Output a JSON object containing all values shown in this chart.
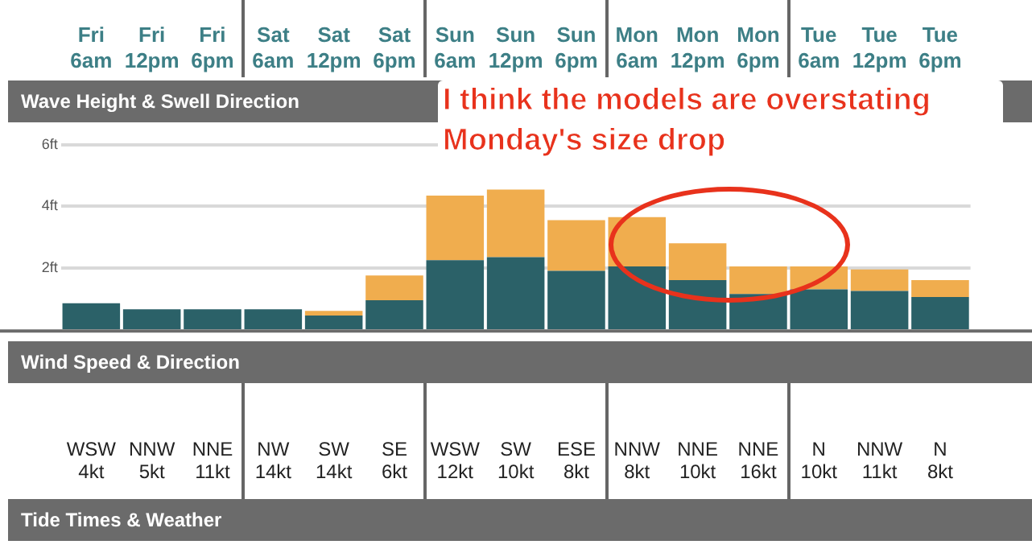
{
  "chart_data": [
    {
      "type": "bar",
      "title": "Wave Height & Swell Direction",
      "stacked": true,
      "categories": [
        "Fri 6am",
        "Fri 12pm",
        "Fri 6pm",
        "Sat 6am",
        "Sat 12pm",
        "Sat 6pm",
        "Sun 6am",
        "Sun 12pm",
        "Sun 6pm",
        "Mon 6am",
        "Mon 12pm",
        "Mon 6pm",
        "Tue 6am",
        "Tue 12pm",
        "Tue 6pm"
      ],
      "series": [
        {
          "color": "#2b6168",
          "values": [
            0.85,
            0.65,
            0.65,
            0.65,
            0.45,
            0.95,
            2.25,
            2.35,
            1.9,
            2.05,
            1.6,
            1.15,
            1.3,
            1.25,
            1.05
          ]
        },
        {
          "color": "#f0ad4e",
          "values": [
            0,
            0,
            0,
            0,
            0.15,
            0.8,
            2.1,
            2.2,
            1.65,
            1.6,
            1.2,
            0.9,
            0.75,
            0.7,
            0.55
          ]
        }
      ],
      "ylim": [
        0,
        6
      ],
      "yticks": [
        {
          "value": 0,
          "label": null
        },
        {
          "value": 2,
          "label": "2ft"
        },
        {
          "value": 4,
          "label": "4ft"
        },
        {
          "value": 6,
          "label": "6ft"
        }
      ],
      "grid": "y",
      "legend": false,
      "annotations": [
        "I think the models are overstating Monday's size drop"
      ]
    },
    {
      "type": "other",
      "title": "Wind Speed & Direction",
      "annotations": [
        "WSW 4kt",
        "NNW 5kt",
        "NNE 11kt",
        "NW 14kt",
        "SW 14kt",
        "SE 6kt",
        "WSW 12kt",
        "SW 10kt",
        "ESE 8kt",
        "NNW 8kt",
        "NNE 10kt",
        "NNE 16kt",
        "N 10kt",
        "NNW 11kt",
        "N 8kt"
      ]
    },
    {
      "type": "other",
      "title": "Tide Times & Weather"
    }
  ]
}
